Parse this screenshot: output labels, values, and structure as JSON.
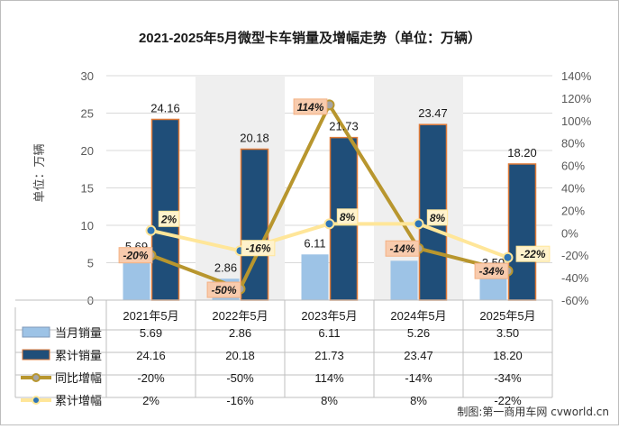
{
  "chart_data": {
    "type": "bar",
    "title": "2021-2025年5月微型卡车销量及增幅走势（单位：万辆）",
    "ylabel": "单位：万辆",
    "ylim": [
      0,
      30
    ],
    "yticks": [
      0,
      5,
      10,
      15,
      20,
      25,
      30
    ],
    "y2lim": [
      -60,
      140
    ],
    "y2ticks": [
      "-60%",
      "-40%",
      "-20%",
      "0%",
      "20%",
      "40%",
      "60%",
      "80%",
      "100%",
      "120%",
      "140%"
    ],
    "categories": [
      "2021年5月",
      "2022年5月",
      "2023年5月",
      "2024年5月",
      "2025年5月"
    ],
    "series": [
      {
        "name": "当月销量",
        "kind": "bar",
        "axis": "left",
        "color": "#9dc3e6",
        "values": [
          5.69,
          2.86,
          6.11,
          5.26,
          3.5
        ],
        "labels": [
          "5.69",
          "2.86",
          "6.11",
          "5.26",
          "3.50"
        ]
      },
      {
        "name": "累计销量",
        "kind": "bar",
        "axis": "left",
        "color": "#1f4e79",
        "values": [
          24.16,
          20.18,
          21.73,
          23.47,
          18.2
        ],
        "labels": [
          "24.16",
          "20.18",
          "21.73",
          "23.47",
          "18.20"
        ]
      },
      {
        "name": "同比增幅",
        "kind": "line",
        "axis": "right",
        "color": "#b8962e",
        "values": [
          -20,
          -50,
          114,
          -14,
          -34
        ],
        "labels": [
          "-20%",
          "-50%",
          "114%",
          "-14%",
          "-34%"
        ]
      },
      {
        "name": "累计增幅",
        "kind": "line",
        "axis": "right",
        "color": "#ffe699",
        "values": [
          2,
          -16,
          8,
          8,
          -22
        ],
        "labels": [
          "2%",
          "-16%",
          "8%",
          "8%",
          "-22%"
        ]
      }
    ],
    "legend": "table-bottom",
    "grid": true
  },
  "watermark": "制图:第一商用车网 cvworld.cn"
}
